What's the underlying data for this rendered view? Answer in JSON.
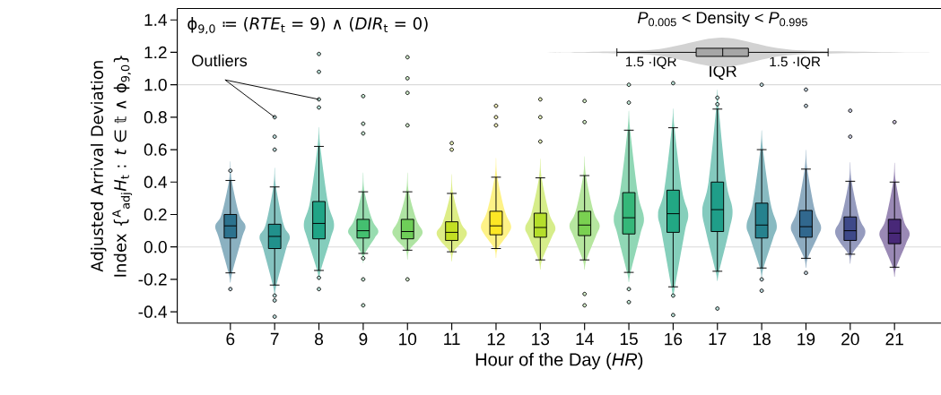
{
  "chart_data": {
    "type": "box",
    "xlabel": "Hour of the Day (*HR*)",
    "ylabel": "Adjusted Arrival Deviation Index {$^{A}$$_{adj}$*H*$_{t}$ : *t* ∈ 𝕥 ∧ ϕ$_{9,0}$}",
    "categories": [
      "6",
      "7",
      "8",
      "9",
      "10",
      "11",
      "12",
      "13",
      "14",
      "15",
      "16",
      "17",
      "18",
      "19",
      "20",
      "21"
    ],
    "boxes": [
      {
        "low": -0.16,
        "q1": 0.055,
        "median": 0.13,
        "q3": 0.2,
        "high": 0.41,
        "outliers": [
          -0.26,
          0.47
        ]
      },
      {
        "low": -0.235,
        "q1": -0.01,
        "median": 0.065,
        "q3": 0.14,
        "high": 0.37,
        "outliers": [
          0.8,
          0.68,
          0.6,
          -0.3,
          -0.33,
          -0.43
        ]
      },
      {
        "low": -0.145,
        "q1": 0.05,
        "median": 0.145,
        "q3": 0.28,
        "high": 0.62,
        "outliers": [
          0.91,
          0.86,
          1.19,
          1.08,
          -0.19,
          -0.26
        ]
      },
      {
        "low": -0.04,
        "q1": 0.055,
        "median": 0.1,
        "q3": 0.17,
        "high": 0.34,
        "outliers": [
          0.7,
          0.76,
          0.93,
          -0.07,
          -0.2,
          -0.36
        ]
      },
      {
        "low": -0.02,
        "q1": 0.05,
        "median": 0.095,
        "q3": 0.17,
        "high": 0.34,
        "outliers": [
          0.75,
          0.95,
          1.04,
          1.17,
          -0.2
        ]
      },
      {
        "low": -0.03,
        "q1": 0.04,
        "median": 0.09,
        "q3": 0.155,
        "high": 0.33,
        "outliers": [
          0.6,
          0.64
        ]
      },
      {
        "low": -0.01,
        "q1": 0.075,
        "median": 0.13,
        "q3": 0.22,
        "high": 0.43,
        "outliers": [
          0.75,
          0.8,
          0.87
        ]
      },
      {
        "low": -0.08,
        "q1": 0.06,
        "median": 0.12,
        "q3": 0.208,
        "high": 0.426,
        "outliers": [
          0.65,
          0.8,
          0.91
        ]
      },
      {
        "low": -0.08,
        "q1": 0.07,
        "median": 0.135,
        "q3": 0.22,
        "high": 0.44,
        "outliers": [
          0.77,
          0.9,
          -0.29,
          -0.36
        ]
      },
      {
        "low": -0.157,
        "q1": 0.08,
        "median": 0.18,
        "q3": 0.335,
        "high": 0.72,
        "outliers": [
          0.89,
          1.0,
          -0.26,
          -0.34
        ]
      },
      {
        "low": -0.246,
        "q1": 0.09,
        "median": 0.205,
        "q3": 0.35,
        "high": 0.735,
        "outliers": [
          1.01,
          -0.3,
          -0.42
        ]
      },
      {
        "low": -0.15,
        "q1": 0.095,
        "median": 0.23,
        "q3": 0.4,
        "high": 0.85,
        "outliers": [
          0.92,
          0.88,
          -0.38
        ]
      },
      {
        "low": -0.13,
        "q1": 0.055,
        "median": 0.135,
        "q3": 0.27,
        "high": 0.6,
        "outliers": [
          1.0,
          -0.2,
          -0.27
        ]
      },
      {
        "low": -0.07,
        "q1": 0.06,
        "median": 0.125,
        "q3": 0.225,
        "high": 0.48,
        "outliers": [
          0.87,
          0.97,
          -0.16
        ]
      },
      {
        "low": -0.045,
        "q1": 0.04,
        "median": 0.1,
        "q3": 0.185,
        "high": 0.405,
        "outliers": [
          0.68,
          0.84
        ]
      },
      {
        "low": -0.125,
        "q1": 0.02,
        "median": 0.085,
        "q3": 0.17,
        "high": 0.4,
        "outliers": [
          0.77
        ]
      }
    ],
    "colors": [
      "#2c728e",
      "#21918c",
      "#20a486",
      "#44bf70",
      "#6ece58",
      "#c2df23",
      "#fde725",
      "#b5de2b",
      "#7ad151",
      "#35b779",
      "#22a884",
      "#1f9e89",
      "#26828e",
      "#31688e",
      "#3e4989",
      "#482878"
    ],
    "ylim": [
      -0.47,
      1.47
    ],
    "yticks": [
      -0.4,
      -0.2,
      {
        "value": 0,
        "label": "0.0"
      },
      0.2,
      0.4,
      0.6,
      0.8,
      {
        "value": 1,
        "label": "1.0"
      },
      1.2,
      1.4
    ],
    "ref_lines": [
      {
        "axis": "y",
        "value": 0,
        "color": "#d9d9d9"
      },
      {
        "axis": "y",
        "value": 1,
        "color": "#d9d9d9"
      }
    ],
    "annotations": [
      "ϕ$_{9,0}$ ≔ (*RTE*$_{t}$ = 9) ∧ (*DIR*$_{t}$ = 0)",
      "Outliers",
      "*P*$_{0.005}$ < Density < *P*$_{0.995}$",
      "1.5 ·IQR",
      "IQR",
      "1.5 ·IQR"
    ]
  }
}
